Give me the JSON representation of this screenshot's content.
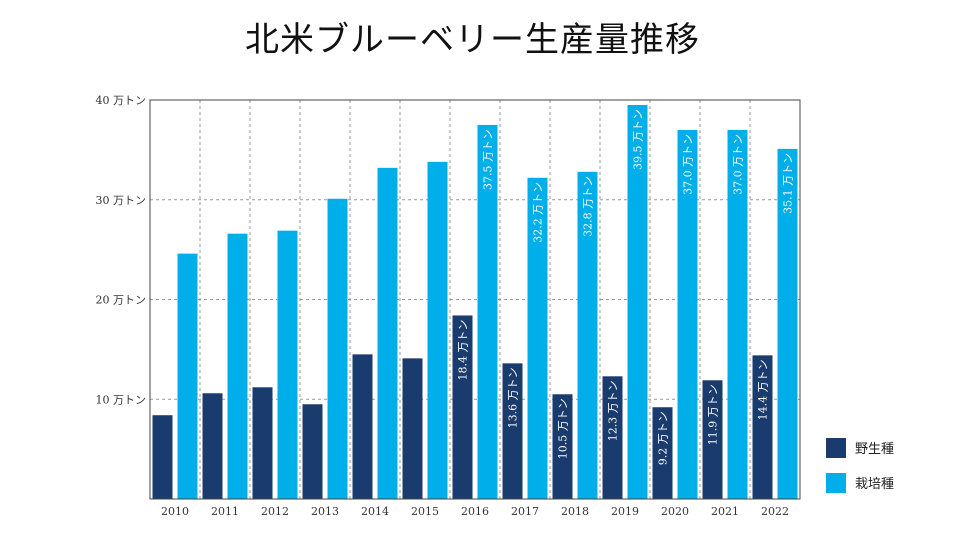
{
  "chart_data": {
    "type": "bar",
    "title": "北米ブルーベリー生産量推移",
    "categories": [
      "2010",
      "2011",
      "2012",
      "2013",
      "2014",
      "2015",
      "2016",
      "2017",
      "2018",
      "2019",
      "2020",
      "2021",
      "2022"
    ],
    "series": [
      {
        "name": "野生種",
        "color": "#1a3b6e",
        "values": [
          8.4,
          10.6,
          11.2,
          9.5,
          14.5,
          14.1,
          18.4,
          13.6,
          10.5,
          12.3,
          9.2,
          11.9,
          14.4
        ],
        "labels": [
          "",
          "",
          "",
          "",
          "",
          "",
          "18.4 万トン",
          "13.6 万トン",
          "10.5 万トン",
          "12.3 万トン",
          "9.2 万トン",
          "11.9 万トン",
          "14.4 万トン"
        ]
      },
      {
        "name": "栽培種",
        "color": "#00aee9",
        "values": [
          24.6,
          26.6,
          26.9,
          30.1,
          33.2,
          33.8,
          37.5,
          32.2,
          32.8,
          39.5,
          37.0,
          37.0,
          35.1
        ],
        "labels": [
          "",
          "",
          "",
          "",
          "",
          "",
          "37.5 万トン",
          "32.2 万トン",
          "32.8 万トン",
          "39.5 万トン",
          "37.0 万トン",
          "37.0 万トン",
          "35.1 万トン"
        ]
      }
    ],
    "ylim": [
      0,
      40
    ],
    "yticks": [
      10,
      20,
      30,
      40
    ],
    "ytick_labels": [
      "10 万トン",
      "20 万トン",
      "30 万トン",
      "40 万トン"
    ],
    "xlabel": "",
    "ylabel": "",
    "grid": true,
    "legend": "right"
  }
}
